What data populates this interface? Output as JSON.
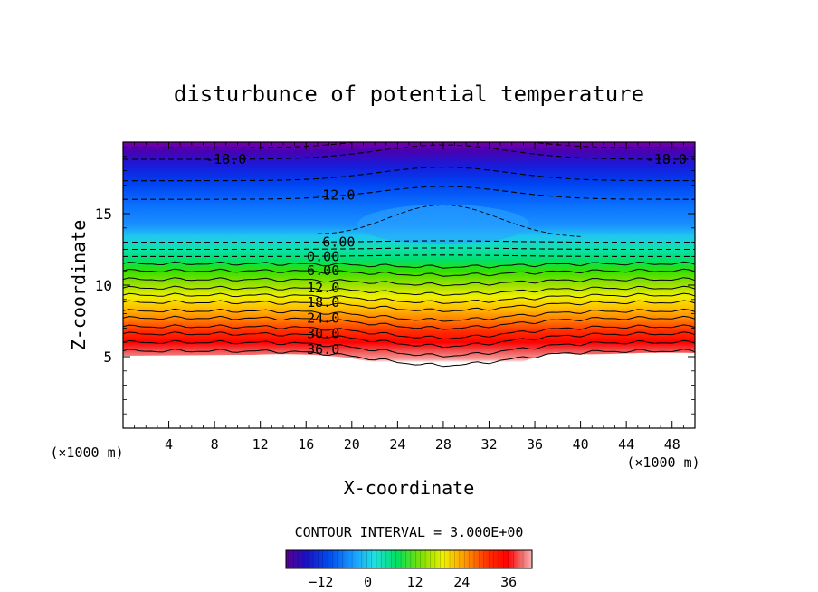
{
  "chart_data": {
    "type": "contour",
    "title": "disturbunce of potential temperature",
    "xlabel": "X-coordinate",
    "ylabel": "Z-coordinate",
    "x_unit_left": "(×1000 m)",
    "x_unit_right": "(×1000 m)",
    "xlim": [
      0,
      50
    ],
    "ylim": [
      0,
      20
    ],
    "x_ticks": [
      4,
      8,
      12,
      16,
      20,
      24,
      28,
      32,
      36,
      40,
      44,
      48
    ],
    "x_tick_labels": [
      "4",
      "8",
      "12",
      "16",
      "20",
      "24",
      "28",
      "32",
      "36",
      "40",
      "44",
      "48"
    ],
    "y_ticks": [
      5,
      10,
      15
    ],
    "y_tick_labels": [
      "5",
      "10",
      "15"
    ],
    "contour_interval_text": "CONTOUR INTERVAL = 3.000E+00",
    "colorbar": {
      "min": -21,
      "max": 42,
      "tick_values": [
        -12,
        0,
        12,
        24,
        36
      ],
      "tick_labels": [
        "−12",
        "0",
        "12",
        "24",
        "36"
      ]
    },
    "contour_labels": [
      {
        "text": "-18.0",
        "x": 9.0,
        "z": 18.8
      },
      {
        "text": "-18.0",
        "x": 47.5,
        "z": 18.8
      },
      {
        "text": "-12.0",
        "x": 18.5,
        "z": 16.3
      },
      {
        "text": "-6.00",
        "x": 18.5,
        "z": 13.0
      },
      {
        "text": "0.00",
        "x": 17.5,
        "z": 12.0
      },
      {
        "text": "6.00",
        "x": 17.5,
        "z": 11.0
      },
      {
        "text": "12.0",
        "x": 17.5,
        "z": 9.8
      },
      {
        "text": "18.0",
        "x": 17.5,
        "z": 8.8
      },
      {
        "text": "24.0",
        "x": 17.5,
        "z": 7.7
      },
      {
        "text": "30.0",
        "x": 17.5,
        "z": 6.6
      },
      {
        "text": "36.0",
        "x": 17.5,
        "z": 5.5
      }
    ]
  }
}
